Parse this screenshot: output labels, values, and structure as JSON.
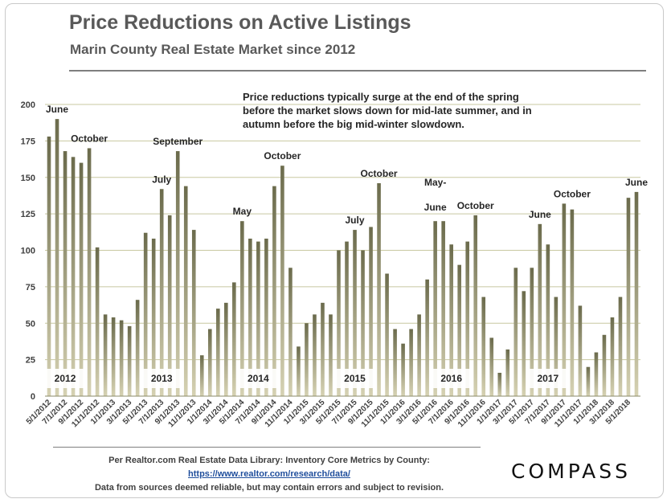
{
  "header": {
    "title": "Price Reductions on Active Listings",
    "subtitle": "Marin County Real Estate Market since 2012"
  },
  "note": "Price reductions typically surge at the end of the spring before the market slows down for mid-late summer, and in autumn before the big mid-winter slowdown.",
  "footer": {
    "line1": "Per Realtor.com Real Estate  Data Library: Inventory Core Metrics by County:",
    "link": "https://www.realtor.com/research/data/",
    "line3": "Data from sources  deemed reliable, but may contain errors and subject to revision.",
    "brand": "COMPASS"
  },
  "colors": {
    "bar_top": "#6b6b4c",
    "bar_bottom": "#d6d2b3",
    "grid": "#c8c8a0",
    "text": "#404040"
  },
  "chart_data": {
    "type": "bar",
    "ylim": [
      0,
      200
    ],
    "yticks": [
      0,
      25,
      50,
      75,
      100,
      125,
      150,
      175,
      200
    ],
    "grid": true,
    "x": [
      "5/1/2012",
      "6/1/2012",
      "7/1/2012",
      "8/1/2012",
      "9/1/2012",
      "10/1/2012",
      "11/1/2012",
      "12/1/2012",
      "1/1/2013",
      "2/1/2013",
      "3/1/2013",
      "4/1/2013",
      "5/1/2013",
      "6/1/2013",
      "7/1/2013",
      "8/1/2013",
      "9/1/2013",
      "10/1/2013",
      "11/1/2013",
      "12/1/2013",
      "1/1/2014",
      "2/1/2014",
      "3/1/2014",
      "4/1/2014",
      "5/1/2014",
      "6/1/2014",
      "7/1/2014",
      "8/1/2014",
      "9/1/2014",
      "10/1/2014",
      "11/1/2014",
      "12/1/2014",
      "1/1/2015",
      "2/1/2015",
      "3/1/2015",
      "4/1/2015",
      "5/1/2015",
      "6/1/2015",
      "7/1/2015",
      "8/1/2015",
      "9/1/2015",
      "10/1/2015",
      "11/1/2015",
      "12/1/2015",
      "1/1/2016",
      "2/1/2016",
      "3/1/2016",
      "4/1/2016",
      "5/1/2016",
      "6/1/2016",
      "7/1/2016",
      "8/1/2016",
      "9/1/2016",
      "10/1/2016",
      "11/1/2016",
      "12/1/2016",
      "1/1/2017",
      "2/1/2017",
      "3/1/2017",
      "4/1/2017",
      "5/1/2017",
      "6/1/2017",
      "7/1/2017",
      "8/1/2017",
      "9/1/2017",
      "10/1/2017",
      "11/1/2017",
      "12/1/2017",
      "1/1/2018",
      "2/1/2018",
      "3/1/2018",
      "4/1/2018",
      "5/1/2018",
      "6/1/2018"
    ],
    "values": [
      178,
      190,
      168,
      164,
      160,
      170,
      102,
      56,
      54,
      52,
      48,
      66,
      112,
      108,
      142,
      124,
      168,
      144,
      114,
      28,
      46,
      60,
      64,
      78,
      120,
      108,
      106,
      108,
      144,
      158,
      88,
      34,
      50,
      56,
      64,
      56,
      100,
      106,
      114,
      100,
      116,
      146,
      84,
      46,
      36,
      46,
      56,
      80,
      120,
      120,
      104,
      90,
      106,
      124,
      68,
      40,
      16,
      32,
      88,
      72,
      88,
      118,
      104,
      68,
      132,
      128,
      62,
      20,
      30,
      42,
      54,
      68,
      136,
      140
    ],
    "xtick_labels": [
      "5/1/2012",
      "7/1/2012",
      "9/1/2012",
      "11/1/2012",
      "1/1/2013",
      "3/1/2013",
      "5/1/2013",
      "7/1/2013",
      "9/1/2013",
      "11/1/2013",
      "1/1/2014",
      "3/1/2014",
      "5/1/2014",
      "7/1/2014",
      "9/1/2014",
      "11/1/2014",
      "1/1/2015",
      "3/1/2015",
      "5/1/2015",
      "7/1/2015",
      "9/1/2015",
      "11/1/2015",
      "1/1/2016",
      "3/1/2016",
      "5/1/2016",
      "7/1/2016",
      "9/1/2016",
      "11/1/2016",
      "1/1/2017",
      "3/1/2017",
      "5/1/2017",
      "7/1/2017",
      "9/1/2017",
      "11/1/2017",
      "1/1/2018",
      "3/1/2018",
      "5/1/2018"
    ],
    "annotations": [
      {
        "text": "June",
        "x": "6/1/2012",
        "y": 190
      },
      {
        "text": "October",
        "x": "10/1/2012",
        "y": 170
      },
      {
        "text": "July",
        "x": "7/1/2013",
        "y": 142
      },
      {
        "text": "September",
        "x": "9/1/2013",
        "y": 168
      },
      {
        "text": "May",
        "x": "5/1/2014",
        "y": 120
      },
      {
        "text": "October",
        "x": "10/1/2014",
        "y": 158
      },
      {
        "text": "July",
        "x": "7/1/2015",
        "y": 114
      },
      {
        "text": "October",
        "x": "10/1/2015",
        "y": 146
      },
      {
        "text": "May-",
        "x": "5/1/2016",
        "y": 140
      },
      {
        "text": "June",
        "x": "5/1/2016",
        "y": 130
      },
      {
        "text": "October",
        "x": "10/1/2016",
        "y": 124
      },
      {
        "text": "June",
        "x": "6/1/2017",
        "y": 118
      },
      {
        "text": "October",
        "x": "10/1/2017",
        "y": 132
      },
      {
        "text": "June",
        "x": "6/1/2018",
        "y": 140
      }
    ],
    "year_labels": [
      {
        "text": "2012",
        "from": "5/1/2012",
        "to": "9/1/2012"
      },
      {
        "text": "2013",
        "from": "5/1/2013",
        "to": "9/1/2013"
      },
      {
        "text": "2014",
        "from": "5/1/2014",
        "to": "9/1/2014"
      },
      {
        "text": "2015",
        "from": "5/1/2015",
        "to": "9/1/2015"
      },
      {
        "text": "2016",
        "from": "5/1/2016",
        "to": "9/1/2016"
      },
      {
        "text": "2017",
        "from": "5/1/2017",
        "to": "9/1/2017"
      }
    ]
  }
}
